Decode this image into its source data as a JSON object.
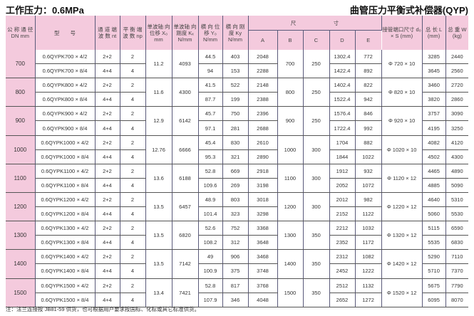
{
  "title_left": "工作压力：0.6MPa",
  "title_right": "曲管压力平衡式补偿器(QYP)",
  "headers": {
    "dn": "公 称 通 径 DN mm",
    "model": "型　　号",
    "nt": "通 道 端 波 数 nt",
    "np": "平 衡 端 波 数 np",
    "xo": "单波轴 向位移 X₀ mm",
    "kx": "单波轴 向刚度 Kₓ N/mm",
    "yo": "横 向 位 移 Y₀ N/mm",
    "ky": "横 向 刚 度 Ky N/mm",
    "size": "尺　　　　　　　寸",
    "a": "A",
    "b": "B",
    "c": "C",
    "d": "D",
    "e": "E",
    "pipe": "接管端口尺寸 d₀ × S (mm)",
    "l": "总 长 L (mm)",
    "w": "总 重 W (kg)"
  },
  "groups": [
    {
      "dn": "700",
      "xo": "11.2",
      "kx": "4093",
      "b": "700",
      "c": "250",
      "pipe": "Φ 720 × 10",
      "rows": [
        {
          "model": "0.6QYPK700 × 4/2",
          "nt": "2+2",
          "np": "2",
          "yo": "44.5",
          "ky": "403",
          "a": "2048",
          "d": "1302.4",
          "e": "772",
          "l": "3285",
          "w": "2440"
        },
        {
          "model": "0.6QYPK700 × 8/4",
          "nt": "4+4",
          "np": "4",
          "yo": "94",
          "ky": "153",
          "a": "2288",
          "d": "1422.4",
          "e": "892",
          "l": "3645",
          "w": "2560"
        }
      ]
    },
    {
      "dn": "800",
      "xo": "11.6",
      "kx": "4300",
      "b": "800",
      "c": "250",
      "pipe": "Φ 820 × 10",
      "rows": [
        {
          "model": "0.6QYPK800 × 4/2",
          "nt": "2+2",
          "np": "2",
          "yo": "41.5",
          "ky": "522",
          "a": "2148",
          "d": "1402.4",
          "e": "822",
          "l": "3460",
          "w": "2720"
        },
        {
          "model": "0.6QYPK800 × 8/4",
          "nt": "4+4",
          "np": "4",
          "yo": "87.7",
          "ky": "199",
          "a": "2388",
          "d": "1522.4",
          "e": "942",
          "l": "3820",
          "w": "2860"
        }
      ]
    },
    {
      "dn": "900",
      "xo": "12.9",
      "kx": "6142",
      "b": "900",
      "c": "250",
      "pipe": "Φ 920 × 10",
      "rows": [
        {
          "model": "0.6QYPK900 × 4/2",
          "nt": "2+2",
          "np": "2",
          "yo": "45.7",
          "ky": "750",
          "a": "2396",
          "d": "1576.4",
          "e": "846",
          "l": "3757",
          "w": "3090"
        },
        {
          "model": "0.6QYPK900 × 8/4",
          "nt": "4+4",
          "np": "4",
          "yo": "97.1",
          "ky": "281",
          "a": "2688",
          "d": "1722.4",
          "e": "992",
          "l": "4195",
          "w": "3250"
        }
      ]
    },
    {
      "dn": "1000",
      "xo": "12.76",
      "kx": "6666",
      "b": "1000",
      "c": "300",
      "pipe": "Φ 1020 × 10",
      "rows": [
        {
          "model": "0.6QYPK1000 × 4/2",
          "nt": "2+2",
          "np": "2",
          "yo": "45.4",
          "ky": "830",
          "a": "2610",
          "d": "1704",
          "e": "882",
          "l": "4082",
          "w": "4120"
        },
        {
          "model": "0.6QYPK1000 × 8/4",
          "nt": "4+4",
          "np": "4",
          "yo": "95.3",
          "ky": "321",
          "a": "2890",
          "d": "1844",
          "e": "1022",
          "l": "4502",
          "w": "4300"
        }
      ]
    },
    {
      "dn": "1100",
      "xo": "13.6",
      "kx": "6188",
      "b": "1100",
      "c": "300",
      "pipe": "Φ 1120 × 12",
      "rows": [
        {
          "model": "0.6QYPK1100 × 4/2",
          "nt": "2+2",
          "np": "2",
          "yo": "52.8",
          "ky": "669",
          "a": "2918",
          "d": "1912",
          "e": "932",
          "l": "4465",
          "w": "4890"
        },
        {
          "model": "0.6QYPK1100 × 8/4",
          "nt": "4+4",
          "np": "4",
          "yo": "109.6",
          "ky": "269",
          "a": "3198",
          "d": "2052",
          "e": "1072",
          "l": "4885",
          "w": "5090"
        }
      ]
    },
    {
      "dn": "1200",
      "xo": "13.5",
      "kx": "6457",
      "b": "1200",
      "c": "300",
      "pipe": "Φ 1220 × 12",
      "rows": [
        {
          "model": "0.6QYPK1200 × 4/2",
          "nt": "2+2",
          "np": "2",
          "yo": "48.9",
          "ky": "803",
          "a": "3018",
          "d": "2012",
          "e": "982",
          "l": "4640",
          "w": "5310"
        },
        {
          "model": "0.6QYPK1200 × 8/4",
          "nt": "4+4",
          "np": "4",
          "yo": "101.4",
          "ky": "323",
          "a": "3298",
          "d": "2152",
          "e": "1122",
          "l": "5060",
          "w": "5530"
        }
      ]
    },
    {
      "dn": "1300",
      "xo": "13.5",
      "kx": "6820",
      "b": "1300",
      "c": "350",
      "pipe": "Φ 1320 × 12",
      "rows": [
        {
          "model": "0.6QYPK1300 × 4/2",
          "nt": "2+2",
          "np": "2",
          "yo": "52.6",
          "ky": "752",
          "a": "3368",
          "d": "2212",
          "e": "1032",
          "l": "5115",
          "w": "6590"
        },
        {
          "model": "0.6QYPK1300 × 8/4",
          "nt": "4+4",
          "np": "4",
          "yo": "108.2",
          "ky": "312",
          "a": "3648",
          "d": "2352",
          "e": "1172",
          "l": "5535",
          "w": "6830"
        }
      ]
    },
    {
      "dn": "1400",
      "xo": "13.5",
      "kx": "7142",
      "b": "1400",
      "c": "350",
      "pipe": "Φ 1420 × 12",
      "rows": [
        {
          "model": "0.6QYPK1400 × 4/2",
          "nt": "2+2",
          "np": "2",
          "yo": "49",
          "ky": "906",
          "a": "3468",
          "d": "2312",
          "e": "1082",
          "l": "5290",
          "w": "7110"
        },
        {
          "model": "0.6QYPK1400 × 8/4",
          "nt": "4+4",
          "np": "4",
          "yo": "100.9",
          "ky": "375",
          "a": "3748",
          "d": "2452",
          "e": "1222",
          "l": "5710",
          "w": "7370"
        }
      ]
    },
    {
      "dn": "1500",
      "xo": "13.4",
      "kx": "7421",
      "b": "1500",
      "c": "350",
      "pipe": "Φ 1520 × 12",
      "rows": [
        {
          "model": "0.6QYPK1500 × 4/2",
          "nt": "2+2",
          "np": "2",
          "yo": "52.8",
          "ky": "817",
          "a": "3768",
          "d": "2512",
          "e": "1132",
          "l": "5675",
          "w": "7790"
        },
        {
          "model": "0.6QYPK1500 × 8/4",
          "nt": "4+4",
          "np": "4",
          "yo": "107.9",
          "ky": "346",
          "a": "4048",
          "d": "2652",
          "e": "1272",
          "l": "6095",
          "w": "8070"
        }
      ]
    }
  ],
  "note": "注：法兰连接按 JB81-59 供货，也可根据用户要求按国标、化标或其它标准供货。",
  "colors": {
    "header_bg": "#f4cadd",
    "grid": "#555555"
  }
}
